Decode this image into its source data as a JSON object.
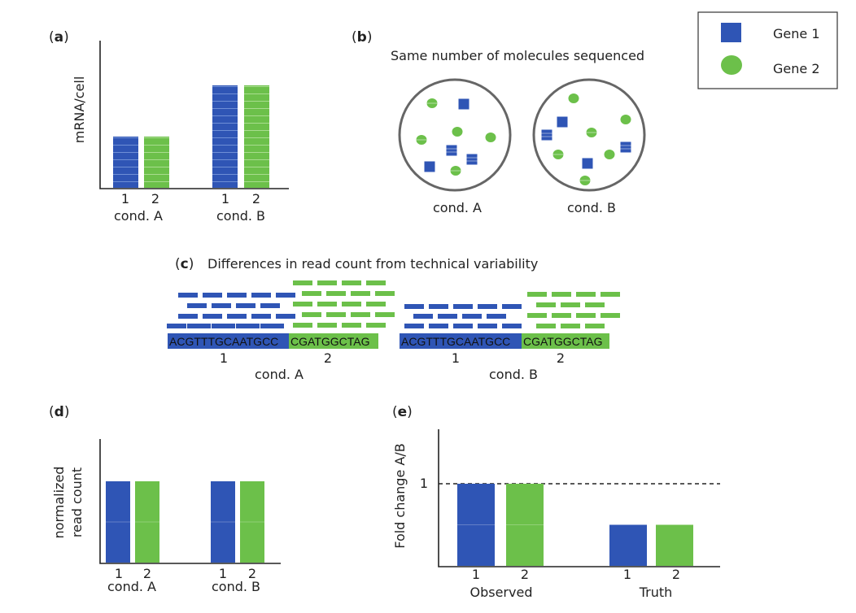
{
  "colors": {
    "gene1": "#2f55b5",
    "gene2": "#6cc04a",
    "axis": "#222222",
    "circle": "#666666"
  },
  "legend": {
    "items": [
      {
        "label": "Gene 1",
        "shape": "square"
      },
      {
        "label": "Gene 2",
        "shape": "circle"
      }
    ]
  },
  "panel_a": {
    "tag": "a",
    "ylabel": "mRNA/cell",
    "groups": [
      {
        "label": "cond. A",
        "genes": [
          "1",
          "2"
        ]
      },
      {
        "label": "cond. B",
        "genes": [
          "1",
          "2"
        ]
      }
    ],
    "chart_data": {
      "type": "bar",
      "categories": [
        "cond. A",
        "cond. B"
      ],
      "series": [
        {
          "name": "Gene 1",
          "values": [
            1,
            2
          ]
        },
        {
          "name": "Gene 2",
          "values": [
            1,
            2
          ]
        }
      ],
      "ylabel": "mRNA/cell"
    }
  },
  "panel_b": {
    "tag": "b",
    "title": "Same number of molecules sequenced",
    "circles": [
      {
        "label": "cond. A"
      },
      {
        "label": "cond. B"
      }
    ]
  },
  "panel_c": {
    "tag": "c",
    "title": "Differences in read count from technical variability",
    "groups": [
      {
        "label": "cond. A",
        "seq1": "ACGTTTGCAATGCC",
        "seq2": "CGATGGCTAG",
        "gene_labels": [
          "1",
          "2"
        ]
      },
      {
        "label": "cond. B",
        "seq1": "ACGTTTGCAATGCC",
        "seq2": "CGATGGCTAG",
        "gene_labels": [
          "1",
          "2"
        ]
      }
    ]
  },
  "panel_d": {
    "tag": "d",
    "ylabel_line1": "normalized",
    "ylabel_line2": "read count",
    "groups": [
      {
        "label": "cond. A",
        "genes": [
          "1",
          "2"
        ]
      },
      {
        "label": "cond. B",
        "genes": [
          "1",
          "2"
        ]
      }
    ],
    "chart_data": {
      "type": "bar",
      "categories": [
        "cond. A",
        "cond. B"
      ],
      "series": [
        {
          "name": "Gene 1",
          "values": [
            1,
            1
          ]
        },
        {
          "name": "Gene 2",
          "values": [
            1,
            1
          ]
        }
      ],
      "ylabel": "normalized read count"
    }
  },
  "panel_e": {
    "tag": "e",
    "ylabel": "Fold change A/B",
    "ref_tick": "1",
    "groups": [
      {
        "label": "Observed",
        "genes": [
          "1",
          "2"
        ]
      },
      {
        "label": "Truth",
        "genes": [
          "1",
          "2"
        ]
      }
    ],
    "chart_data": {
      "type": "bar",
      "categories": [
        "Observed",
        "Truth"
      ],
      "series": [
        {
          "name": "Gene 1",
          "values": [
            1,
            0.5
          ]
        },
        {
          "name": "Gene 2",
          "values": [
            1,
            0.5
          ]
        }
      ],
      "ylabel": "Fold change A/B",
      "reference_line": 1
    }
  }
}
